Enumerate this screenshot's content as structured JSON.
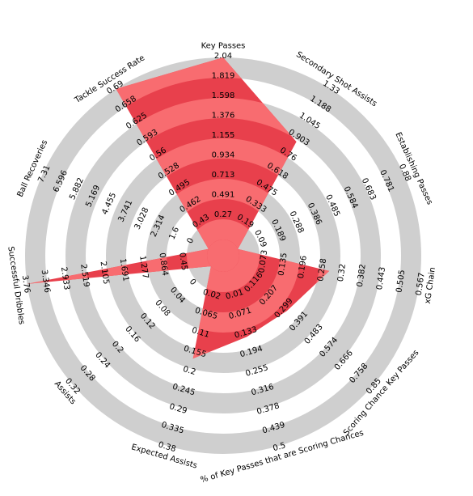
{
  "chart_data": {
    "type": "radar",
    "title": "",
    "categories": [
      "Key Passes",
      "Secondary Shot Assists",
      "Establishing Passes",
      "xG Chain",
      "Scoring Chance Key Passes",
      "% of Key Passes that are Scoring Chances",
      "Expected Assists",
      "Assists",
      "Successful Dribbles",
      "Ball Recoveries",
      "Tackle Success Rate"
    ],
    "axes": [
      {
        "min": 0.05,
        "max": 2.04,
        "ticks": [
          "0.27",
          "0.491",
          "0.713",
          "0.934",
          "1.155",
          "1.376",
          "1.598",
          "1.819",
          "2.04"
        ]
      },
      {
        "min": 0.09,
        "max": 1.33,
        "ticks": [
          "0.19",
          "0.333",
          "0.475",
          "0.618",
          "0.76",
          "0.903",
          "1.045",
          "1.188",
          "1.33"
        ]
      },
      {
        "min": 0.09,
        "max": 0.88,
        "ticks": [
          "0.09",
          "0.189",
          "0.288",
          "0.386",
          "0.485",
          "0.584",
          "0.683",
          "0.781",
          "0.88"
        ]
      },
      {
        "min": 0.073,
        "max": 0.567,
        "ticks": [
          "0.073",
          "0.135",
          "0.196",
          "0.258",
          "0.32",
          "0.382",
          "0.443",
          "0.505",
          "0.567"
        ]
      },
      {
        "min": 0.116,
        "max": 0.85,
        "ticks": [
          "0.116",
          "0.207",
          "0.299",
          "0.391",
          "0.483",
          "0.574",
          "0.666",
          "0.758",
          "0.85"
        ]
      },
      {
        "min": 0.01,
        "max": 0.5,
        "ticks": [
          "0.01",
          "0.071",
          "0.133",
          "0.194",
          "0.255",
          "0.316",
          "0.378",
          "0.439",
          "0.5"
        ]
      },
      {
        "min": 0.02,
        "max": 0.38,
        "ticks": [
          "0.02",
          "0.065",
          "0.11",
          "0.155",
          "0.2",
          "0.245",
          "0.29",
          "0.335",
          "0.38"
        ]
      },
      {
        "min": 0.0,
        "max": 0.32,
        "ticks": [
          "0",
          "0.04",
          "0.08",
          "0.12",
          "0.16",
          "0.2",
          "0.24",
          "0.28",
          "0.32"
        ]
      },
      {
        "min": 0.45,
        "max": 3.76,
        "ticks": [
          "0.45",
          "0.864",
          "1.277",
          "1.691",
          "2.105",
          "2.519",
          "2.933",
          "3.346",
          "3.76"
        ]
      },
      {
        "min": 0.0,
        "max": 7.31,
        "ticks": [
          "0",
          "1.6",
          "2.314",
          "3.028",
          "3.741",
          "4.455",
          "5.169",
          "5.882",
          "6.596",
          "7.31"
        ]
      },
      {
        "min": 0.43,
        "max": 0.69,
        "ticks": [
          "0.43",
          "0.462",
          "0.495",
          "0.528",
          "0.56",
          "0.593",
          "0.625",
          "0.658",
          "0.69"
        ]
      }
    ],
    "values": [
      2.04,
      0.903,
      0.09,
      0.32,
      0.391,
      0.194,
      0.2,
      0.0,
      3.76,
      0.0,
      0.69
    ],
    "colors": {
      "fill_dark": "#e8404c",
      "fill_light": "#f86c70",
      "band": "#cfcfcf",
      "center": "#f86c70"
    }
  }
}
